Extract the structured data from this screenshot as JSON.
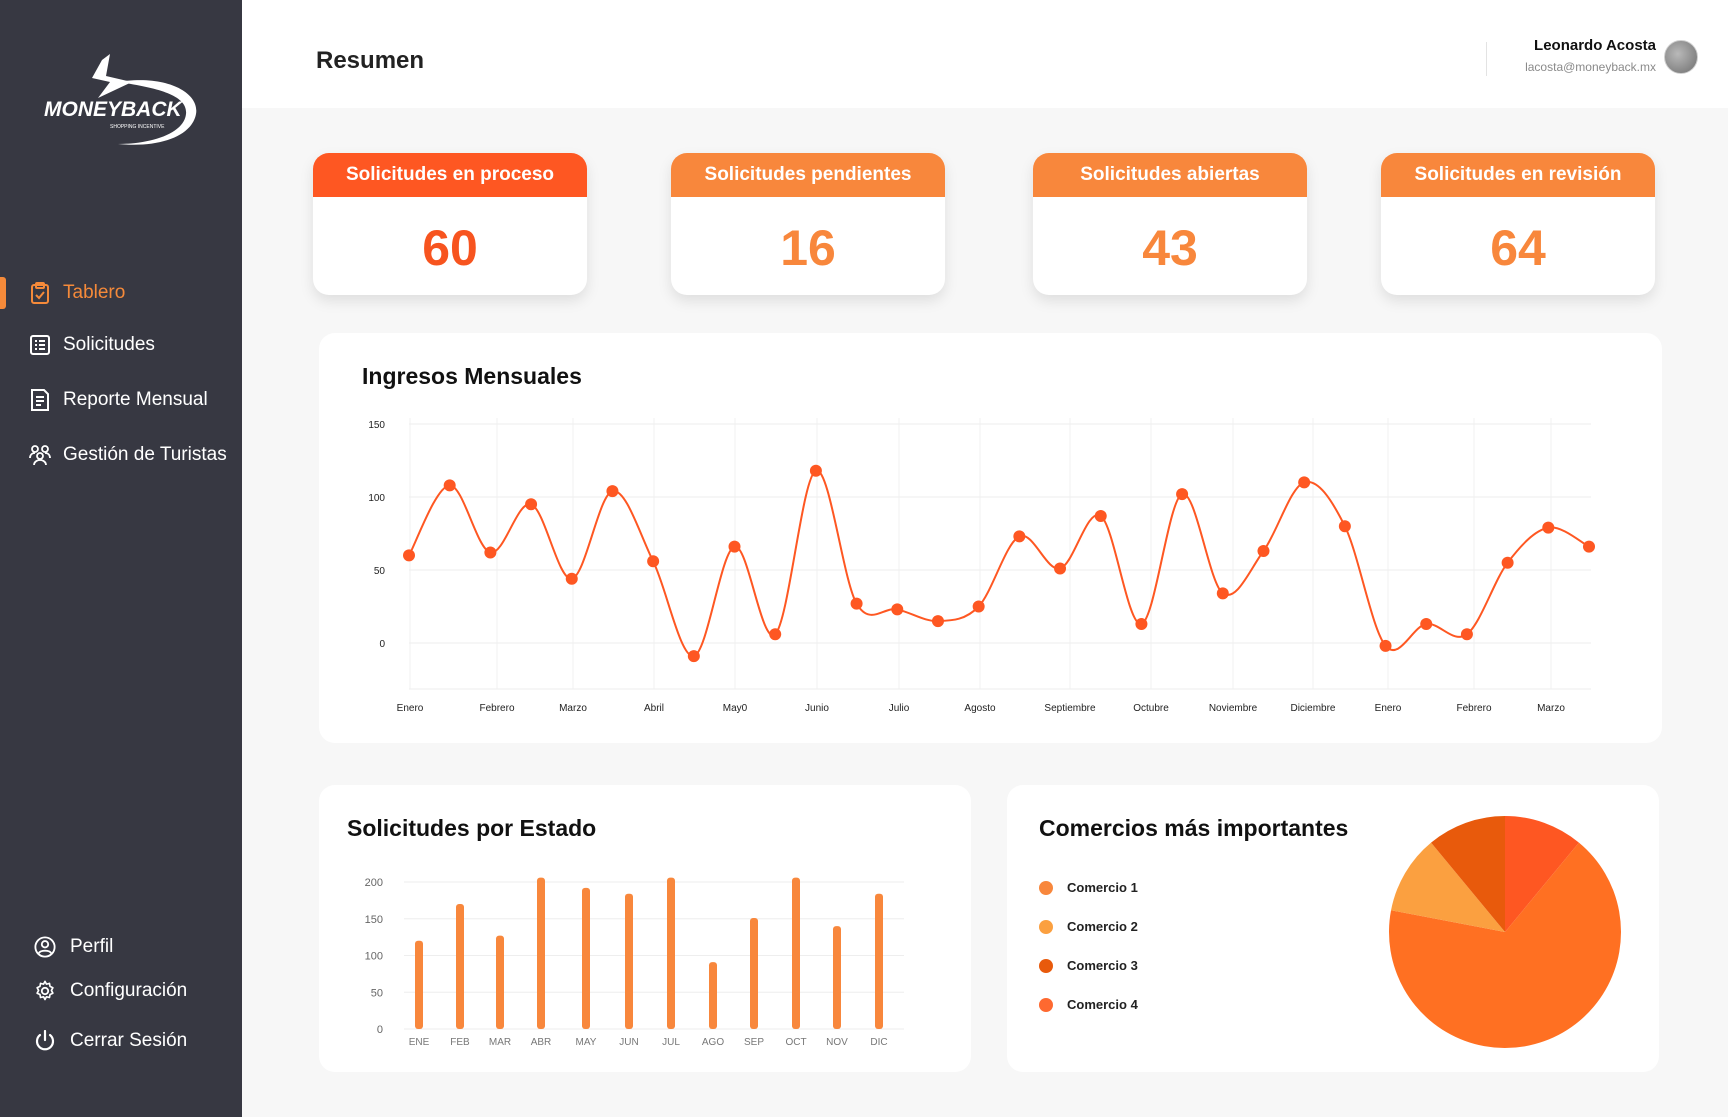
{
  "brand": {
    "logo_text": "MONEYBACK",
    "logo_tagline": "SHOPPING INCENTIVE"
  },
  "sidebar": {
    "items": [
      {
        "label": "Tablero",
        "icon": "clipboard-check-icon",
        "active": true
      },
      {
        "label": "Solicitudes",
        "icon": "list-icon",
        "active": false
      },
      {
        "label": "Reporte Mensual",
        "icon": "report-icon",
        "active": false
      },
      {
        "label": "Gestión de Turistas",
        "icon": "group-icon",
        "active": false
      }
    ],
    "bottom": [
      {
        "label": "Perfil",
        "icon": "user-circle-icon"
      },
      {
        "label": "Configuración",
        "icon": "gear-icon"
      },
      {
        "label": "Cerrar Sesión",
        "icon": "power-icon"
      }
    ]
  },
  "header": {
    "title": "Resumen",
    "user": {
      "name": "Leonardo Acosta",
      "email": "lacosta@moneyback.mx"
    }
  },
  "stats": [
    {
      "label": "Solicitudes en proceso",
      "value": "60",
      "header_color": "#fe5722",
      "value_color": "#f7541f"
    },
    {
      "label": "Solicitudes pendientes",
      "value": "16",
      "header_color": "#f8873c",
      "value_color": "#f8873c"
    },
    {
      "label": "Solicitudes abiertas",
      "value": "43",
      "header_color": "#f8873c",
      "value_color": "#f8873c"
    },
    {
      "label": "Solicitudes en revisión",
      "value": "64",
      "header_color": "#f8873c",
      "value_color": "#f8873c"
    }
  ],
  "colors": {
    "accent": "#f58a3a",
    "line": "#fe5722",
    "bar": "#f8873c",
    "sidebar": "#373842"
  },
  "chart_data": [
    {
      "type": "line",
      "title": "Ingresos Mensuales",
      "xlabel": "",
      "ylabel": "",
      "ylim": [
        0,
        150
      ],
      "y_ticks": [
        150,
        100,
        50,
        0
      ],
      "x_tick_labels": [
        "Enero",
        "Febrero",
        "Marzo",
        "Abril",
        "May0",
        "Junio",
        "Julio",
        "Agosto",
        "Septiembre",
        "Octubre",
        "Noviembre",
        "Diciembre",
        "Enero",
        "Febrero",
        "Marzo"
      ],
      "grid": true,
      "series": [
        {
          "values": [
            60,
            108,
            62,
            95,
            44,
            104,
            56,
            -9,
            66,
            6,
            118,
            27,
            23,
            15,
            25,
            73,
            51,
            87,
            13,
            102,
            34,
            63,
            110,
            80,
            -2,
            13,
            6,
            55,
            79,
            66
          ]
        }
      ]
    },
    {
      "type": "bar",
      "title": "Solicitudes por Estado",
      "categories": [
        "ENE",
        "FEB",
        "MAR",
        "ABR",
        "MAY",
        "JUN",
        "JUL",
        "AGO",
        "SEP",
        "OCT",
        "NOV",
        "DIC"
      ],
      "values": [
        120,
        170,
        127,
        206,
        192,
        184,
        206,
        91,
        151,
        206,
        140,
        184
      ],
      "ylim": [
        0,
        200
      ],
      "y_ticks": [
        200,
        150,
        100,
        50,
        0
      ],
      "grid": true
    },
    {
      "type": "pie",
      "title": "Comercios más importantes",
      "labels": [
        "Comercio 1",
        "Comercio 2",
        "Comercio 3",
        "Comercio 4"
      ],
      "values": [
        67,
        11,
        11,
        11
      ],
      "colors": [
        "#ff7022",
        "#fba040",
        "#e85a0c",
        "#fe5722"
      ],
      "legend_colors": [
        "#f8873c",
        "#fba040",
        "#e85a0c",
        "#fe6930"
      ],
      "legend": "left"
    }
  ]
}
